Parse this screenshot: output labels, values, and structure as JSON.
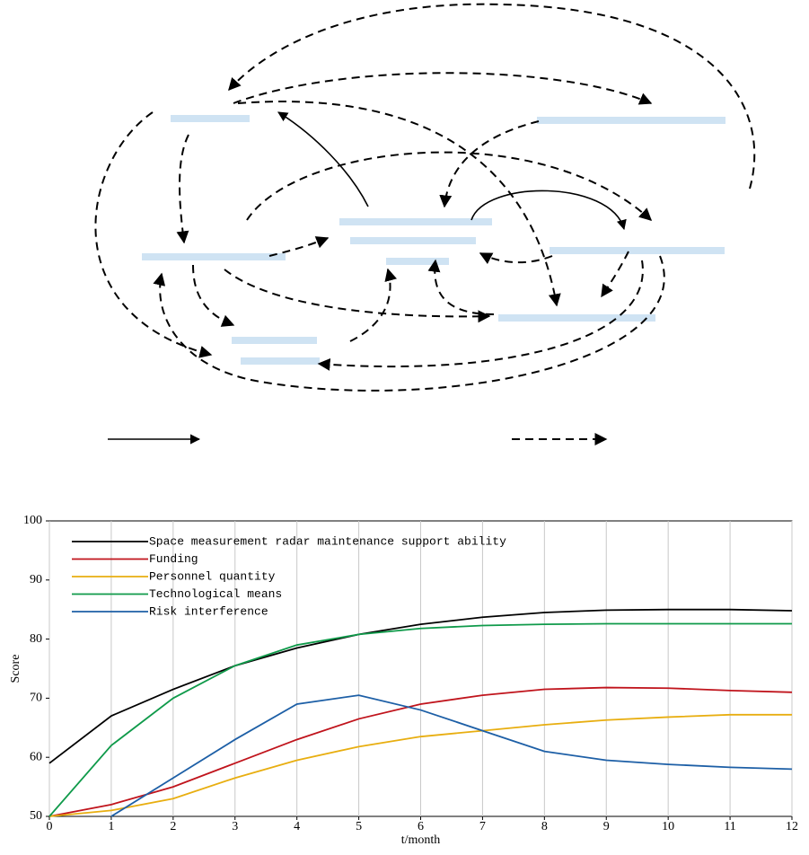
{
  "chart_data": {
    "type": "line",
    "x": [
      0,
      1,
      2,
      3,
      4,
      5,
      6,
      7,
      8,
      9,
      10,
      11,
      12
    ],
    "series": [
      {
        "name": "Space measurement radar maintenance support ability",
        "color": "#000000",
        "values": [
          59,
          67,
          71.5,
          75.5,
          78.5,
          80.8,
          82.5,
          83.7,
          84.5,
          84.9,
          85,
          85,
          84.8
        ]
      },
      {
        "name": "Funding",
        "color": "#c0141c",
        "values": [
          50,
          52,
          55,
          59,
          63,
          66.5,
          69,
          70.5,
          71.5,
          71.8,
          71.7,
          71.3,
          71
        ]
      },
      {
        "name": "Personnel quantity",
        "color": "#e8ae10",
        "values": [
          50,
          51,
          53,
          56.5,
          59.5,
          61.8,
          63.5,
          64.5,
          65.5,
          66.3,
          66.8,
          67.2,
          67.2
        ]
      },
      {
        "name": "Technological means",
        "color": "#0f9a4a",
        "values": [
          50,
          62,
          70,
          75.5,
          79,
          80.8,
          81.8,
          82.3,
          82.5,
          82.6,
          82.6,
          82.6,
          82.6
        ]
      },
      {
        "name": "Risk interference",
        "color": "#1d5fa6",
        "values": [
          null,
          50,
          56.5,
          63,
          69,
          70.5,
          68,
          64.5,
          61,
          59.5,
          58.8,
          58.3,
          58
        ]
      }
    ],
    "xlabel": "t/month",
    "ylabel": "Score",
    "xlim": [
      0,
      12
    ],
    "xticks": [
      0,
      1,
      2,
      3,
      4,
      5,
      6,
      7,
      8,
      9,
      10,
      11,
      12
    ],
    "ylim": [
      50,
      100
    ],
    "yticks": [
      50,
      60,
      70,
      80,
      90,
      100
    ],
    "grid": "x",
    "legend": "upper-left"
  }
}
